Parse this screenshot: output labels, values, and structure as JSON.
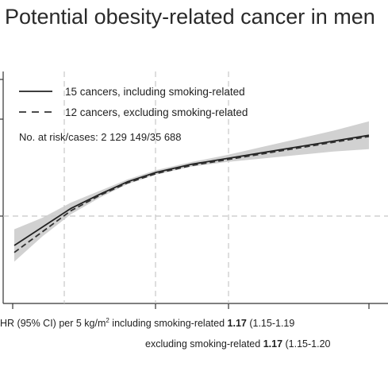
{
  "chart_data": {
    "type": "line",
    "title": "Potential obesity-related cancer in men",
    "x_range": [
      0,
      1
    ],
    "y_range": [
      0,
      1
    ],
    "grid": {
      "vertical_dashed": true,
      "horizontal_dashed": true
    },
    "legend": {
      "placement": "top-left",
      "entries": [
        {
          "style": "solid",
          "label": "15 cancers, including smoking-related"
        },
        {
          "style": "dashed",
          "label": "12 cancers, excluding smoking-related"
        }
      ],
      "note": "No. at risk/cases: 2 129 149/35 688"
    },
    "series": [
      {
        "name": "15 cancers, including smoking-related",
        "style": "solid",
        "points": [
          [
            0.0,
            0.25
          ],
          [
            0.08,
            0.33
          ],
          [
            0.16,
            0.41
          ],
          [
            0.24,
            0.47
          ],
          [
            0.32,
            0.525
          ],
          [
            0.4,
            0.565
          ],
          [
            0.5,
            0.6
          ],
          [
            0.6,
            0.625
          ],
          [
            0.7,
            0.65
          ],
          [
            0.8,
            0.675
          ],
          [
            0.9,
            0.7
          ],
          [
            1.0,
            0.725
          ]
        ],
        "ci_low": [
          0.18,
          0.29,
          0.385,
          0.455,
          0.515,
          0.555,
          0.59,
          0.61,
          0.625,
          0.64,
          0.655,
          0.665
        ],
        "ci_high": [
          0.32,
          0.37,
          0.435,
          0.485,
          0.535,
          0.575,
          0.61,
          0.64,
          0.675,
          0.71,
          0.745,
          0.785
        ]
      },
      {
        "name": "12 cancers, excluding smoking-related",
        "style": "dashed",
        "points": [
          [
            0.0,
            0.22
          ],
          [
            0.08,
            0.31
          ],
          [
            0.16,
            0.4
          ],
          [
            0.24,
            0.465
          ],
          [
            0.32,
            0.52
          ],
          [
            0.4,
            0.56
          ],
          [
            0.5,
            0.595
          ],
          [
            0.6,
            0.62
          ],
          [
            0.7,
            0.645
          ],
          [
            0.8,
            0.67
          ],
          [
            0.9,
            0.695
          ],
          [
            1.0,
            0.72
          ]
        ]
      }
    ],
    "annotations": {
      "line1_prefix": "HR (95% CI) per 5 kg/m",
      "line1_sup": "2",
      "line1_middle": " including smoking-related ",
      "line1_hr": "1.17",
      "line1_ci": " (1.15-1.19",
      "line2_middle": "excluding smoking-related ",
      "line2_hr": "1.17",
      "line2_ci": " (1.15-1.20"
    }
  }
}
